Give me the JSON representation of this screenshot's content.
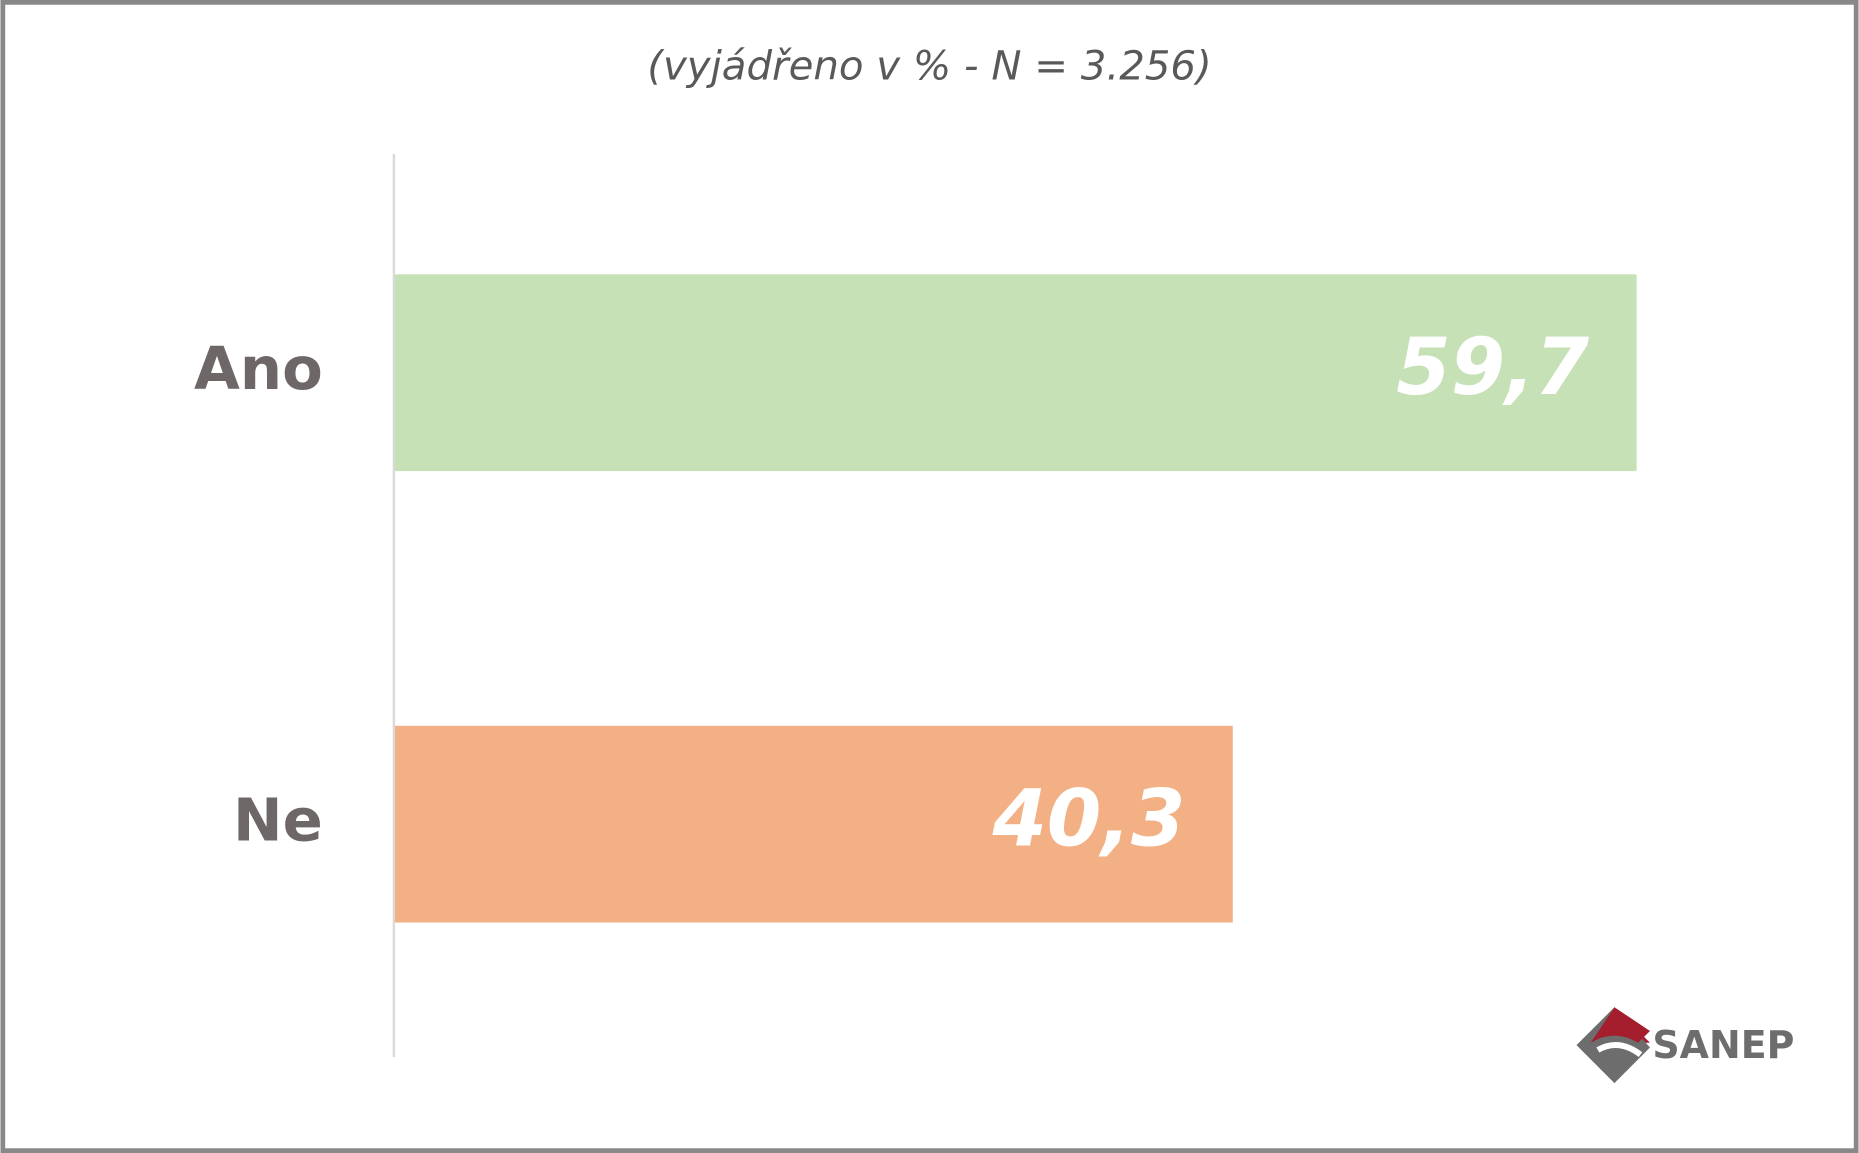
{
  "chart_data": {
    "type": "hbar",
    "subtitle": "(vyjádřeno v % - N = 3.256)",
    "categories": [
      "Ano",
      "Ne"
    ],
    "values": [
      59.7,
      40.3
    ],
    "value_labels": [
      "59,7",
      "40,3"
    ],
    "colors": [
      "#c5e1b5",
      "#f3b085"
    ],
    "xlim": [
      0,
      60
    ]
  },
  "logo": "SANEP"
}
